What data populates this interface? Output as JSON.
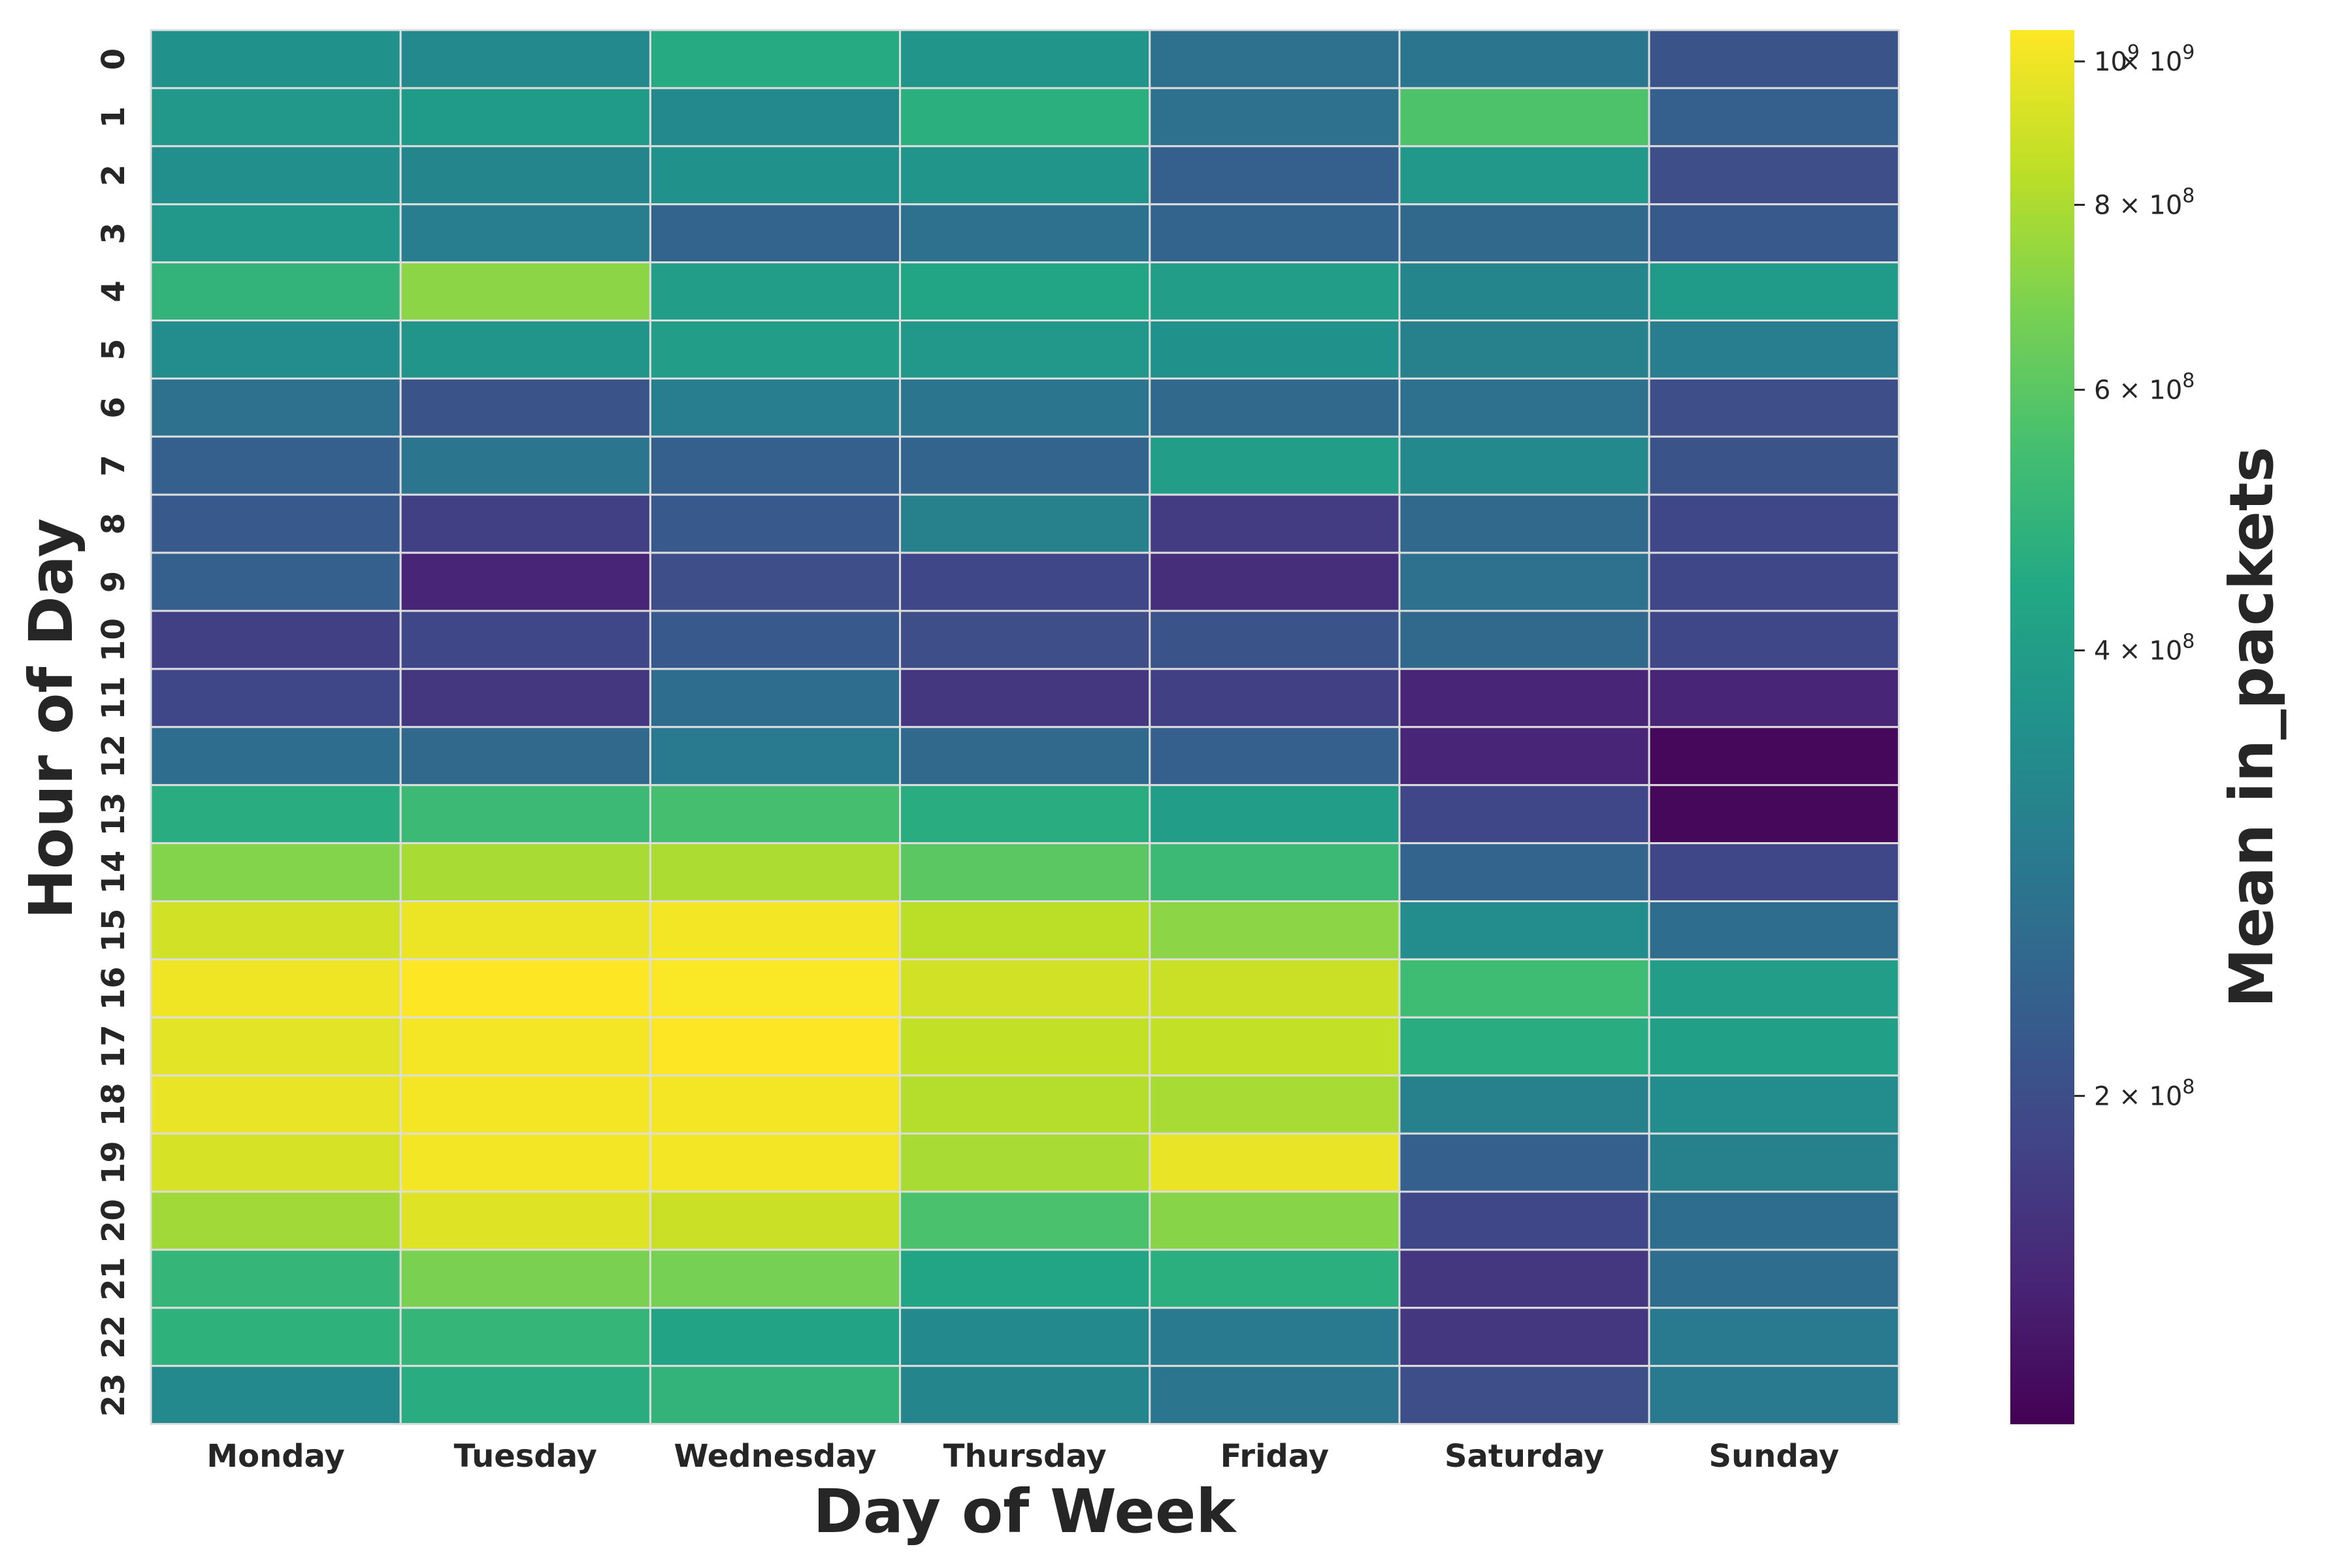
{
  "chart_data": {
    "type": "heatmap",
    "xlabel": "Day of Week",
    "ylabel": "Hour of Day",
    "colorbar_label": "Mean in_packets",
    "colormap": "viridis",
    "color_scale": "log",
    "color_range": [
      120000000,
      1050000000
    ],
    "colorbar_ticks": [
      {
        "value": 200000000,
        "label": "2 × 10^8"
      },
      {
        "value": 400000000,
        "label": "4 × 10^8"
      },
      {
        "value": 600000000,
        "label": "6 × 10^8"
      },
      {
        "value": 800000000,
        "label": "8 × 10^8"
      },
      {
        "value": 1000000000,
        "label": "10^9"
      }
    ],
    "colorbar_top_tick": {
      "value": 1000000000,
      "label": "1 × 10^9"
    },
    "cell_border_color": "#dddddd",
    "grid": false,
    "x_categories": [
      "Monday",
      "Tuesday",
      "Wednesday",
      "Thursday",
      "Friday",
      "Saturday",
      "Sunday"
    ],
    "y_categories": [
      "0",
      "1",
      "2",
      "3",
      "4",
      "5",
      "6",
      "7",
      "8",
      "9",
      "10",
      "11",
      "12",
      "13",
      "14",
      "15",
      "16",
      "17",
      "18",
      "19",
      "20",
      "21",
      "22",
      "23"
    ],
    "values": [
      [
        360000000,
        330000000,
        450000000,
        370000000,
        270000000,
        280000000,
        210000000
      ],
      [
        380000000,
        390000000,
        330000000,
        470000000,
        270000000,
        570000000,
        230000000
      ],
      [
        350000000,
        320000000,
        360000000,
        370000000,
        230000000,
        380000000,
        200000000
      ],
      [
        380000000,
        300000000,
        240000000,
        270000000,
        240000000,
        250000000,
        220000000
      ],
      [
        490000000,
        720000000,
        400000000,
        430000000,
        400000000,
        320000000,
        390000000
      ],
      [
        340000000,
        370000000,
        400000000,
        380000000,
        360000000,
        310000000,
        300000000
      ],
      [
        270000000,
        210000000,
        300000000,
        280000000,
        250000000,
        270000000,
        200000000
      ],
      [
        230000000,
        280000000,
        230000000,
        240000000,
        400000000,
        330000000,
        210000000
      ],
      [
        220000000,
        180000000,
        220000000,
        310000000,
        175000000,
        250000000,
        190000000
      ],
      [
        230000000,
        150000000,
        200000000,
        190000000,
        160000000,
        270000000,
        190000000
      ],
      [
        180000000,
        190000000,
        220000000,
        200000000,
        210000000,
        250000000,
        190000000
      ],
      [
        190000000,
        170000000,
        260000000,
        170000000,
        180000000,
        150000000,
        150000000
      ],
      [
        260000000,
        250000000,
        290000000,
        250000000,
        230000000,
        150000000,
        125000000
      ],
      [
        460000000,
        520000000,
        550000000,
        460000000,
        400000000,
        190000000,
        125000000
      ],
      [
        700000000,
        790000000,
        800000000,
        600000000,
        520000000,
        240000000,
        190000000
      ],
      [
        900000000,
        990000000,
        1010000000,
        840000000,
        720000000,
        340000000,
        260000000
      ],
      [
        1000000000,
        1050000000,
        1040000000,
        900000000,
        880000000,
        530000000,
        400000000
      ],
      [
        960000000,
        1020000000,
        1050000000,
        860000000,
        860000000,
        460000000,
        410000000
      ],
      [
        980000000,
        1020000000,
        1020000000,
        820000000,
        790000000,
        310000000,
        340000000
      ],
      [
        920000000,
        1010000000,
        1010000000,
        790000000,
        980000000,
        230000000,
        310000000
      ],
      [
        770000000,
        950000000,
        880000000,
        560000000,
        710000000,
        190000000,
        260000000
      ],
      [
        500000000,
        680000000,
        670000000,
        430000000,
        470000000,
        170000000,
        260000000
      ],
      [
        480000000,
        500000000,
        420000000,
        330000000,
        290000000,
        170000000,
        290000000
      ],
      [
        330000000,
        460000000,
        490000000,
        320000000,
        280000000,
        200000000,
        290000000
      ]
    ]
  }
}
